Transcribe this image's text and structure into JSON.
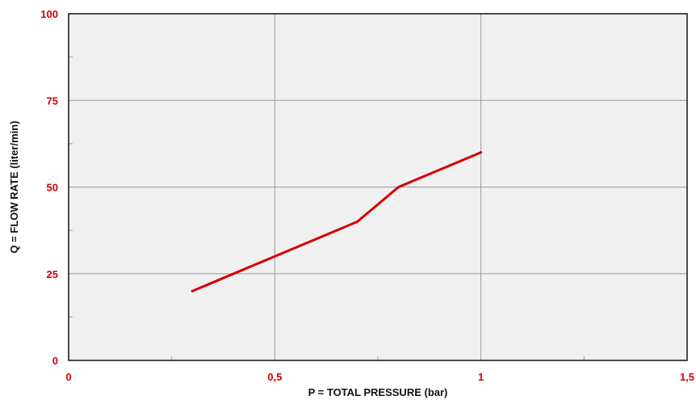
{
  "chart_data": {
    "type": "line",
    "xlabel": "P = TOTAL PRESSURE (bar)",
    "ylabel": "Q = FLOW RATE (liter/min)",
    "xlim": [
      0,
      1.5
    ],
    "ylim": [
      0,
      100
    ],
    "x_ticks": [
      {
        "value": 0,
        "label": "0"
      },
      {
        "value": 0.5,
        "label": "0,5"
      },
      {
        "value": 1,
        "label": "1"
      },
      {
        "value": 1.5,
        "label": "1,5"
      }
    ],
    "y_ticks": [
      {
        "value": 0,
        "label": "0"
      },
      {
        "value": 25,
        "label": "25"
      },
      {
        "value": 50,
        "label": "50"
      },
      {
        "value": 75,
        "label": "75"
      },
      {
        "value": 100,
        "label": "100"
      }
    ],
    "grid": true,
    "series": [
      {
        "color": "#d40000",
        "x": [
          0.3,
          0.7,
          0.8,
          1.0
        ],
        "y": [
          20,
          40,
          50,
          60
        ]
      }
    ],
    "colors": {
      "plot_background": "#f0f0f0",
      "tick_label": "#d40000",
      "grid": "#9a9a9a",
      "axis": "#111111"
    }
  }
}
